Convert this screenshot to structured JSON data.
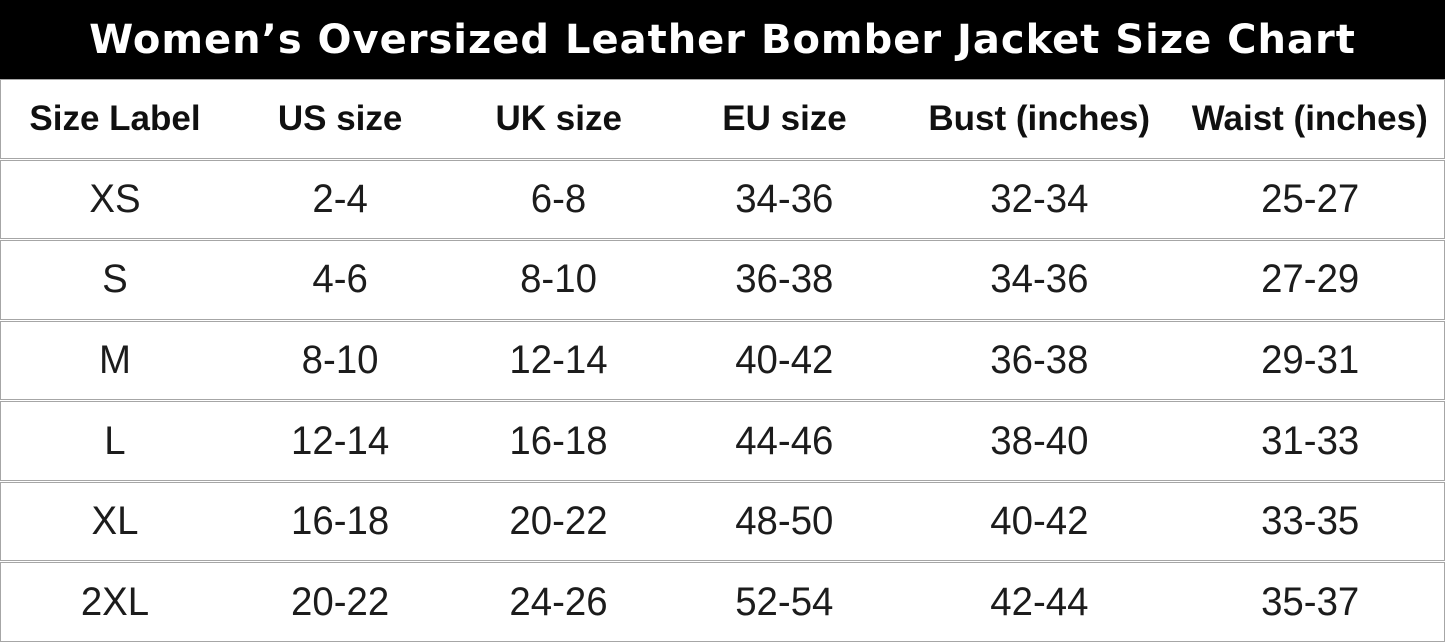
{
  "title": "Women’s Oversized Leather Bomber Jacket Size Chart",
  "colors": {
    "title_bg": "#000000",
    "title_text": "#ffffff",
    "border": "#a6a6a6",
    "body_text": "#1c1c1c"
  },
  "chart_data": {
    "type": "table",
    "title": "Women’s Oversized Leather Bomber Jacket Size Chart",
    "columns": [
      "Size Label",
      "US size",
      "UK size",
      "EU size",
      "Bust (inches)",
      "Waist (inches)"
    ],
    "rows": [
      [
        "XS",
        "2-4",
        "6-8",
        "34-36",
        "32-34",
        "25-27"
      ],
      [
        "S",
        "4-6",
        "8-10",
        "36-38",
        "34-36",
        "27-29"
      ],
      [
        "M",
        "8-10",
        "12-14",
        "40-42",
        "36-38",
        "29-31"
      ],
      [
        "L",
        "12-14",
        "16-18",
        "44-46",
        "38-40",
        "31-33"
      ],
      [
        "XL",
        "16-18",
        "20-22",
        "48-50",
        "40-42",
        "33-35"
      ],
      [
        "2XL",
        "20-22",
        "24-26",
        "52-54",
        "42-44",
        "35-37"
      ]
    ]
  }
}
